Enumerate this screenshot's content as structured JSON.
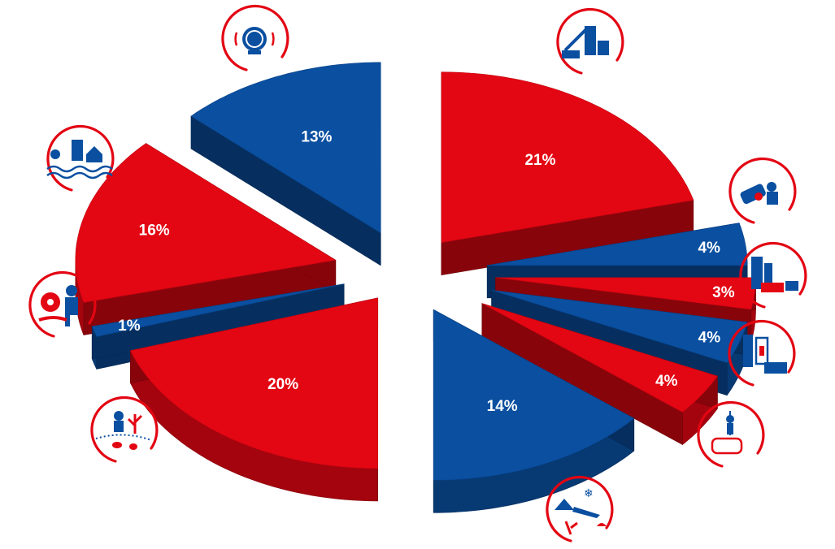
{
  "chart_data": {
    "type": "pie",
    "style": "exploded 3D",
    "slices": [
      {
        "label": "21%",
        "value": 21,
        "color": "#e30613",
        "icon": "aerial-ladder-rescue-icon"
      },
      {
        "label": "4%",
        "value": 4,
        "color": "#0a4fa0",
        "icon": "overturned-car-rescue-icon"
      },
      {
        "label": "3%",
        "value": 3,
        "color": "#e30613",
        "icon": "building-fire-engine-ambulance-icon"
      },
      {
        "label": "4%",
        "value": 4,
        "color": "#0a4fa0",
        "icon": "elevator-emergency-icon"
      },
      {
        "label": "4%",
        "value": 4,
        "color": "#e30613",
        "icon": "animal-rescue-icon"
      },
      {
        "label": "14%",
        "value": 14,
        "color": "#0a4fa0",
        "icon": "ice-water-rescue-icon"
      },
      {
        "label": "20%",
        "value": 20,
        "color": "#e30613",
        "icon": "environmental-pollution-icon"
      },
      {
        "label": "1%",
        "value": 1,
        "color": "#0a4fa0",
        "icon": "hazmat-biohazard-icon"
      },
      {
        "label": "16%",
        "value": 16,
        "color": "#e30613",
        "icon": "flood-rescue-icon"
      },
      {
        "label": "13%",
        "value": 13,
        "color": "#0a4fa0",
        "icon": "alarm-bell-icon"
      }
    ]
  },
  "colors": {
    "red": "#e30613",
    "blue": "#0a4fa0",
    "background": "#ffffff"
  }
}
